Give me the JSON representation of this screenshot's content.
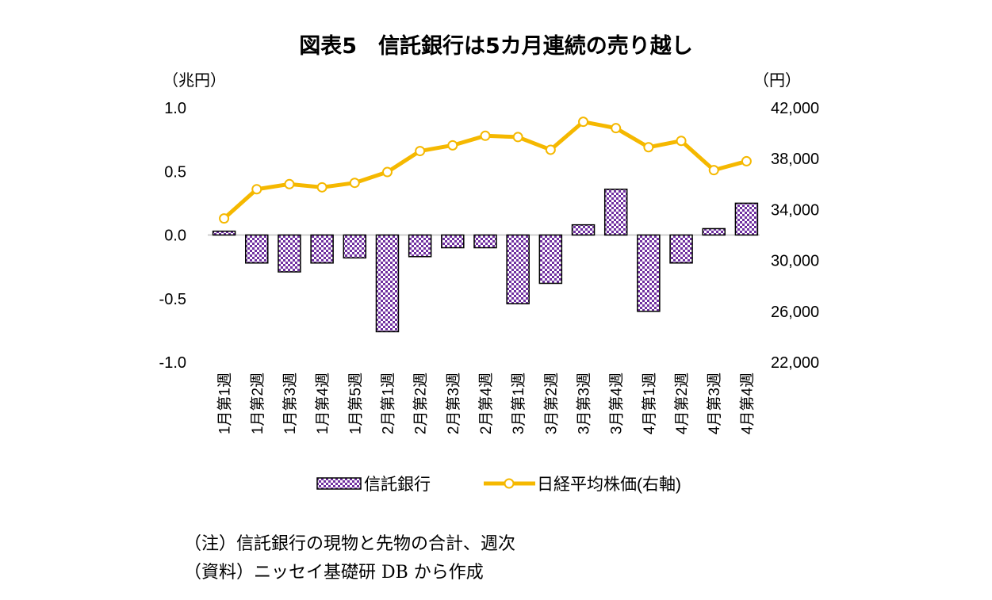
{
  "chart_data": {
    "type": "bar+line",
    "title": "図表5　信託銀行は5カ月連続の売り越し",
    "left_axis": {
      "unit_label": "（兆円）",
      "range": [
        -1.0,
        1.0
      ],
      "ticks": [
        "1.0",
        "0.5",
        "0.0",
        "-0.5",
        "-1.0"
      ],
      "tick_values": [
        1.0,
        0.5,
        0.0,
        -0.5,
        -1.0
      ]
    },
    "right_axis": {
      "unit_label": "（円）",
      "range": [
        22000,
        42000
      ],
      "ticks": [
        "42,000",
        "38,000",
        "34,000",
        "30,000",
        "26,000",
        "22,000"
      ],
      "tick_values": [
        42000,
        38000,
        34000,
        30000,
        26000,
        22000
      ]
    },
    "categories": [
      "1月第1週",
      "1月第2週",
      "1月第3週",
      "1月第4週",
      "1月第5週",
      "2月第1週",
      "2月第2週",
      "2月第3週",
      "2月第4週",
      "3月第1週",
      "3月第2週",
      "3月第3週",
      "3月第4週",
      "4月第1週",
      "4月第2週",
      "4月第3週",
      "4月第4週"
    ],
    "series": [
      {
        "name": "信託銀行",
        "type": "bar",
        "axis": "left",
        "color": "#7030a0",
        "pattern": "checkerboard",
        "values": [
          0.03,
          -0.22,
          -0.29,
          -0.22,
          -0.18,
          -0.76,
          -0.17,
          -0.1,
          -0.1,
          -0.54,
          -0.38,
          0.08,
          0.36,
          -0.6,
          -0.22,
          0.05,
          0.25
        ]
      },
      {
        "name": "日経平均株価(右軸)",
        "type": "line",
        "axis": "right",
        "color": "#f5b800",
        "marker": "open-circle",
        "values": [
          33300,
          35600,
          36000,
          35750,
          36100,
          36950,
          38600,
          39050,
          39800,
          39700,
          38700,
          40900,
          40400,
          38900,
          39400,
          37100,
          37800
        ]
      }
    ],
    "legend": "bottom",
    "grid": false
  },
  "notes": [
    "（注）信託銀行の現物と先物の合計、週次",
    "（資料）ニッセイ基礎研 DB から作成"
  ]
}
